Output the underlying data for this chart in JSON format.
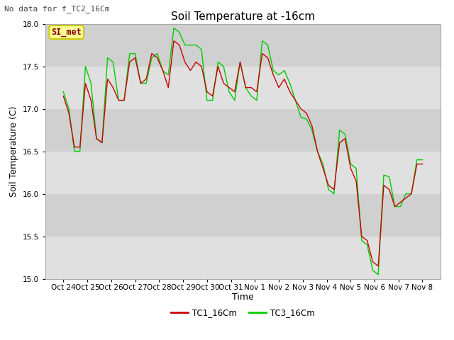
{
  "title": "Soil Temperature at -16cm",
  "xlabel": "Time",
  "ylabel": "Soil Temperature (C)",
  "ylim": [
    15.0,
    18.0
  ],
  "yticks": [
    15.0,
    15.5,
    16.0,
    16.5,
    17.0,
    17.5,
    18.0
  ],
  "xtick_labels": [
    "Oct 24",
    "Oct 25",
    "Oct 26",
    "Oct 27",
    "Oct 28",
    "Oct 29",
    "Oct 30",
    "Oct 31",
    "Nov 1",
    "Nov 2",
    "Nov 3",
    "Nov 4",
    "Nov 5",
    "Nov 6",
    "Nov 7",
    "Nov 8"
  ],
  "no_data_text": "No data for f_TC2_16Cm",
  "legend_label_box": "SI_met",
  "line1_label": "TC1_16Cm",
  "line2_label": "TC3_16Cm",
  "line1_color": "#cc0000",
  "line2_color": "#00cc00",
  "background_color": "#e8e8e8",
  "fig_background": "#ffffff",
  "band_colors": [
    "#e0e0e0",
    "#d0d0d0"
  ],
  "tc1": [
    17.15,
    16.95,
    16.55,
    16.55,
    17.3,
    17.1,
    16.65,
    16.6,
    17.35,
    17.25,
    17.1,
    17.1,
    17.55,
    17.6,
    17.3,
    17.35,
    17.65,
    17.6,
    17.45,
    17.25,
    17.8,
    17.75,
    17.55,
    17.45,
    17.55,
    17.5,
    17.2,
    17.15,
    17.5,
    17.3,
    17.25,
    17.2,
    17.55,
    17.25,
    17.25,
    17.2,
    17.65,
    17.6,
    17.4,
    17.25,
    17.35,
    17.2,
    17.1,
    17.0,
    16.95,
    16.8,
    16.5,
    16.3,
    16.1,
    16.05,
    16.6,
    16.65,
    16.3,
    16.15,
    15.5,
    15.45,
    15.2,
    15.15,
    16.1,
    16.05,
    15.85,
    15.9,
    15.95,
    16.0,
    16.35,
    16.35
  ],
  "tc3": [
    17.2,
    17.0,
    16.5,
    16.5,
    17.5,
    17.3,
    16.65,
    16.6,
    17.6,
    17.55,
    17.1,
    17.1,
    17.65,
    17.65,
    17.3,
    17.3,
    17.6,
    17.65,
    17.45,
    17.4,
    17.95,
    17.9,
    17.75,
    17.75,
    17.75,
    17.7,
    17.1,
    17.1,
    17.55,
    17.5,
    17.2,
    17.1,
    17.55,
    17.25,
    17.15,
    17.1,
    17.8,
    17.75,
    17.45,
    17.4,
    17.45,
    17.3,
    17.1,
    16.9,
    16.88,
    16.75,
    16.5,
    16.35,
    16.05,
    16.0,
    16.75,
    16.7,
    16.35,
    16.3,
    15.45,
    15.4,
    15.1,
    15.05,
    16.22,
    16.2,
    15.85,
    15.85,
    16.0,
    16.0,
    16.4,
    16.4
  ]
}
